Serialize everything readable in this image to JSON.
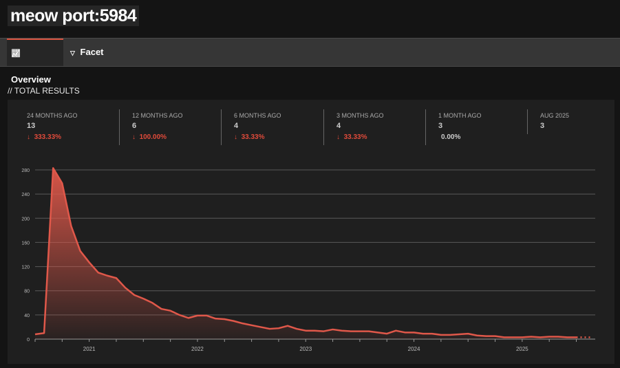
{
  "header": {
    "title": "meow port:5984"
  },
  "tabs": [
    {
      "label": "Overview",
      "icon": "chart-icon",
      "active": true
    },
    {
      "label": "Facet",
      "icon": "triangle-down-icon",
      "active": false
    }
  ],
  "section": {
    "title": "// TOTAL RESULTS"
  },
  "stats": [
    {
      "label": "24 MONTHS AGO",
      "value": "13",
      "change": "333.33%",
      "direction": "down"
    },
    {
      "label": "12 MONTHS AGO",
      "value": "6",
      "change": "100.00%",
      "direction": "down"
    },
    {
      "label": "6 MONTHS AGO",
      "value": "4",
      "change": "33.33%",
      "direction": "down"
    },
    {
      "label": "3 MONTHS AGO",
      "value": "4",
      "change": "33.33%",
      "direction": "down"
    },
    {
      "label": "1 MONTH AGO",
      "value": "3",
      "change": "0.00%",
      "direction": "none"
    },
    {
      "label": "AUG 2025",
      "value": "3"
    }
  ],
  "colors": {
    "accent": "#d9533f",
    "down": "#e04a3a"
  },
  "chart_data": {
    "type": "area",
    "ylim": [
      0,
      280
    ],
    "yticks": [
      0,
      40,
      80,
      120,
      160,
      200,
      240,
      280
    ],
    "xticks": [
      "2021",
      "2022",
      "2023",
      "2024",
      "2025"
    ],
    "grid": true,
    "x": [
      "2020-07",
      "2020-08",
      "2020-09",
      "2020-10",
      "2020-11",
      "2020-12",
      "2021-01",
      "2021-02",
      "2021-03",
      "2021-04",
      "2021-05",
      "2021-06",
      "2021-07",
      "2021-08",
      "2021-09",
      "2021-10",
      "2021-11",
      "2021-12",
      "2022-01",
      "2022-02",
      "2022-03",
      "2022-04",
      "2022-05",
      "2022-06",
      "2022-07",
      "2022-08",
      "2022-09",
      "2022-10",
      "2022-11",
      "2022-12",
      "2023-01",
      "2023-02",
      "2023-03",
      "2023-04",
      "2023-05",
      "2023-06",
      "2023-07",
      "2023-08",
      "2023-09",
      "2023-10",
      "2023-11",
      "2023-12",
      "2024-01",
      "2024-02",
      "2024-03",
      "2024-04",
      "2024-05",
      "2024-06",
      "2024-07",
      "2024-08",
      "2024-09",
      "2024-10",
      "2024-11",
      "2024-12",
      "2025-01",
      "2025-02",
      "2025-03",
      "2025-04",
      "2025-05",
      "2025-06",
      "2025-07",
      "2025-08"
    ],
    "values": [
      8,
      10,
      283,
      258,
      187,
      146,
      127,
      110,
      105,
      101,
      85,
      73,
      67,
      60,
      50,
      47,
      40,
      35,
      39,
      39,
      34,
      33,
      30,
      26,
      23,
      20,
      17,
      18,
      22,
      17,
      14,
      14,
      13,
      16,
      14,
      13,
      13,
      13,
      11,
      9,
      14,
      11,
      11,
      9,
      9,
      7,
      7,
      8,
      9,
      6,
      5,
      5,
      3,
      3,
      3,
      4,
      3,
      4,
      4,
      3,
      3,
      3
    ]
  }
}
